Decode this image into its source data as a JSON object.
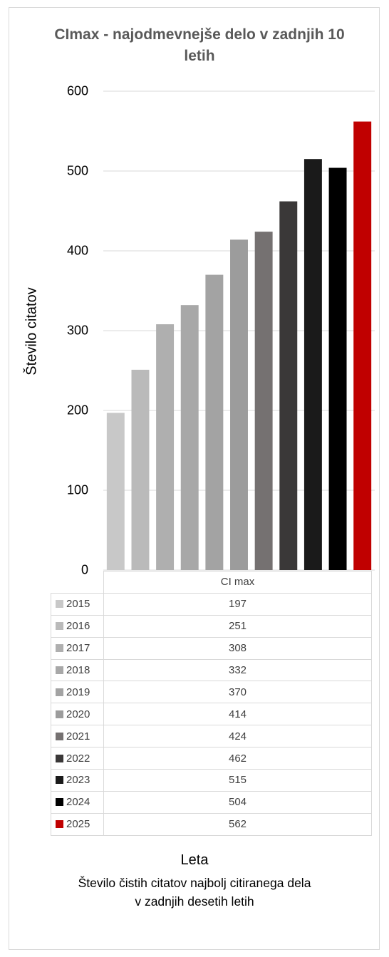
{
  "chart_data": {
    "type": "bar",
    "title": "CImax - najodmevnejše delo v zadnjih 10 letih",
    "ylabel": "Število citatov",
    "xlabel": "Leta",
    "caption_line1": "Število čistih citatov najbolj citiranega dela",
    "caption_line2": "v zadnjih desetih letih",
    "ylim": [
      0,
      600
    ],
    "yticks": [
      "0",
      "100",
      "200",
      "300",
      "400",
      "500",
      "600"
    ],
    "grid": true,
    "series_header": "CI max",
    "categories": [
      "2015",
      "2016",
      "2017",
      "2018",
      "2019",
      "2020",
      "2021",
      "2022",
      "2023",
      "2024",
      "2025"
    ],
    "values": [
      197,
      251,
      308,
      332,
      370,
      414,
      424,
      462,
      515,
      504,
      562
    ],
    "colors": [
      "#c8c8c8",
      "#bababa",
      "#afafaf",
      "#a8a8a8",
      "#a3a3a3",
      "#9c9c9c",
      "#757171",
      "#3a3838",
      "#1a1a1a",
      "#000000",
      "#c00000"
    ]
  }
}
